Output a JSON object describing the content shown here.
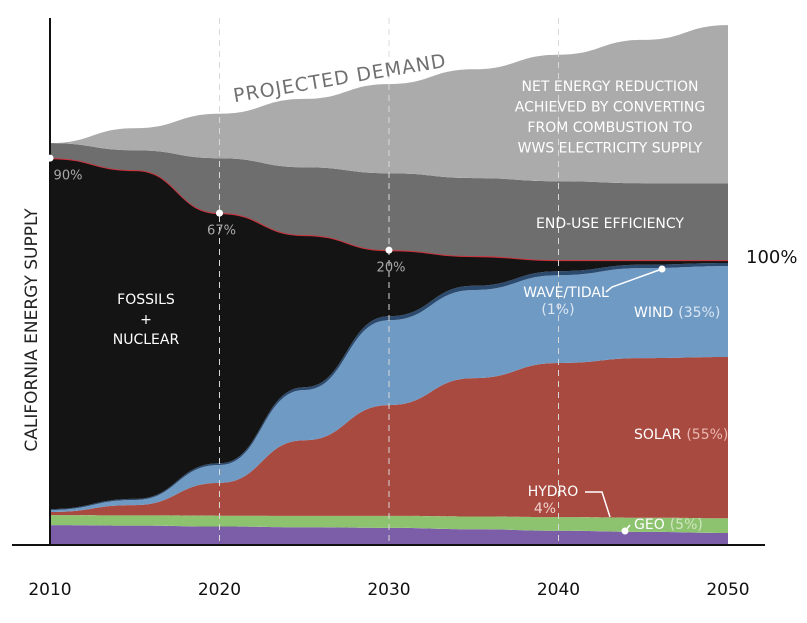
{
  "chart_data": {
    "type": "stacked_area",
    "y_label": "CALIFORNIA ENERGY SUPPLY",
    "x": [
      2010,
      2015,
      2020,
      2025,
      2030,
      2035,
      2040,
      2045,
      2050
    ],
    "xlim": [
      2010,
      2050
    ],
    "xticks": [
      2010,
      2020,
      2030,
      2040,
      2050
    ],
    "ylim": [
      0,
      185
    ],
    "grid": true,
    "series": [
      {
        "name": "GEO",
        "share": 5,
        "share_label": "(5%)",
        "color": "#7b5ea7",
        "values": [
          7,
          6.8,
          6.5,
          6.2,
          6,
          5.5,
          5,
          4.6,
          4.2
        ]
      },
      {
        "name": "HYDRO",
        "share": 4,
        "share_label": "4%",
        "color": "#8dc26f",
        "values": [
          3.5,
          3.6,
          3.8,
          4,
          4.2,
          4.5,
          4.8,
          5,
          5.2
        ]
      },
      {
        "name": "SOLAR",
        "share": 55,
        "share_label": "(55%)",
        "color": "#a84a40",
        "values": [
          1.1,
          3.6,
          11.5,
          26.6,
          38.9,
          48.6,
          54.1,
          56,
          56.6
        ]
      },
      {
        "name": "WIND",
        "share": 35,
        "share_label": "(35%)",
        "color": "#6f9ac4",
        "values": [
          0.7,
          1.8,
          6.3,
          17.6,
          29.8,
          30.9,
          30.8,
          31.6,
          31.9
        ]
      },
      {
        "name": "WAVE/TIDAL",
        "share": 1,
        "share_label": "(1%)",
        "color": "#2c4a6e",
        "values": [
          0.3,
          0.4,
          0.6,
          1,
          1.4,
          1.5,
          1.4,
          1.2,
          1.1
        ]
      },
      {
        "name": [
          "FOSSILS",
          "+",
          "NUCLEAR"
        ],
        "color": "#141414",
        "line_color": "#d0313b",
        "values": [
          123.2,
          115.4,
          87.8,
          53.4,
          23.2,
          10.4,
          3.9,
          1.6,
          1.0
        ]
      },
      {
        "name": "END-USE EFFICIENCY",
        "color": "#6e6e6e",
        "values": [
          5.3,
          7.0,
          19.3,
          23.8,
          27.0,
          27.4,
          27.7,
          27.0,
          27.0
        ]
      },
      {
        "name": [
          "NET ENERGY REDUCTION",
          "ACHIEVED BY CONVERTING",
          "FROM  COMBUSTION TO",
          "WWS ELECTRICITY SUPPLY"
        ],
        "color": "#ababab",
        "values": [
          0,
          7.7,
          15.6,
          24.0,
          31.3,
          38.2,
          44.4,
          50.3,
          55.5
        ]
      }
    ],
    "demand_label": "PROJECTED DEMAND",
    "reference": {
      "value": 100,
      "label": "100%"
    },
    "fossil_share": {
      "x": [
        2010,
        2020,
        2030
      ],
      "values": [
        90,
        67,
        20
      ],
      "value_labels": [
        "90%",
        "67%",
        "20%"
      ]
    }
  }
}
